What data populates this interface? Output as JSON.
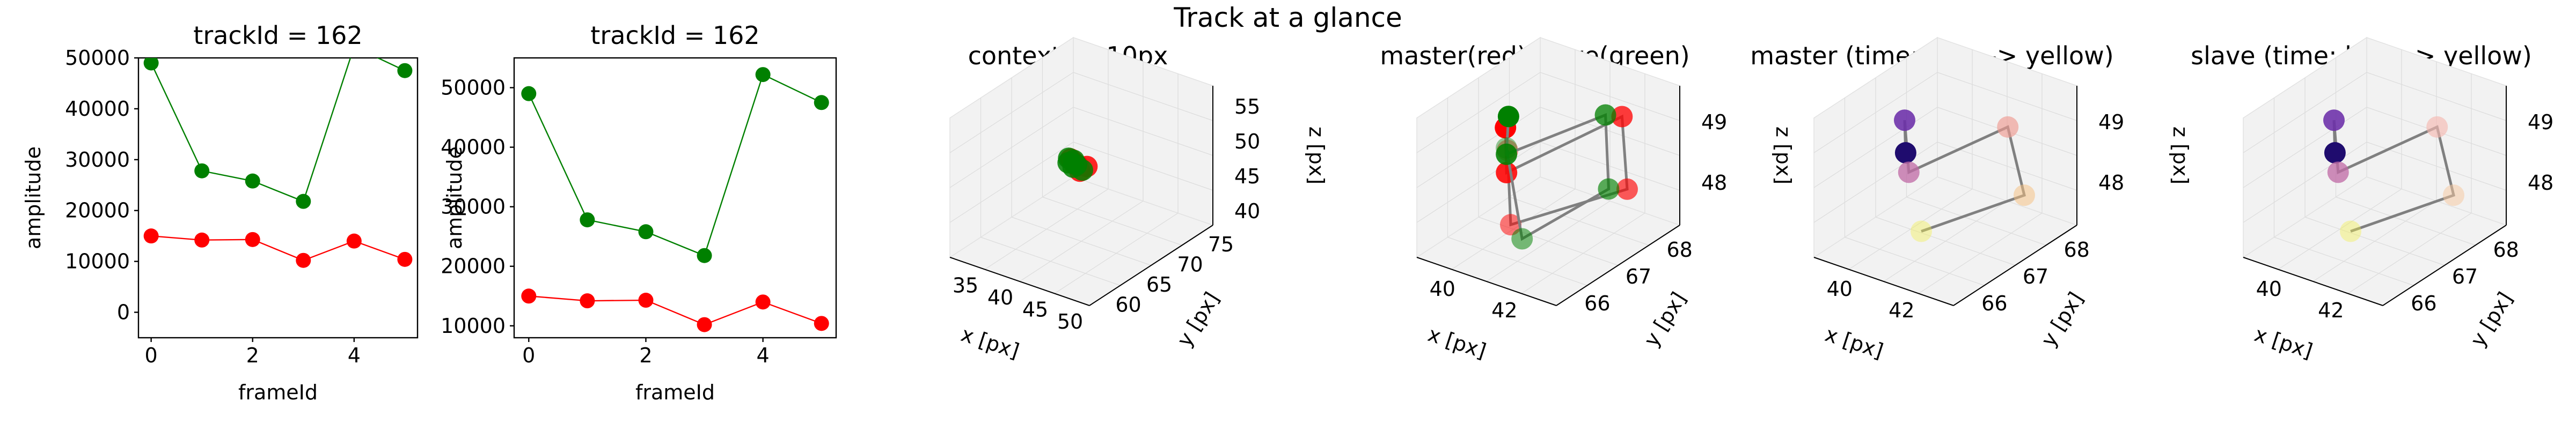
{
  "figure": {
    "suptitle": "Track at a glance"
  },
  "colors": {
    "master": "#ff0000",
    "slave": "#008000",
    "connector": "#808080"
  },
  "chart_data": [
    {
      "type": "line",
      "title": "trackId = 162",
      "xlabel": "frameId",
      "ylabel": "amplitude",
      "x": [
        0,
        1,
        2,
        3,
        4,
        5
      ],
      "xlim": [
        -0.25,
        5.25
      ],
      "ylim": [
        -5000,
        50000
      ],
      "xticks": [
        "0",
        "2",
        "4"
      ],
      "yticks": [
        "0",
        "10000",
        "20000",
        "30000",
        "40000",
        "50000"
      ],
      "series": [
        {
          "color": "#008000",
          "values": [
            49000,
            27800,
            25800,
            21800,
            52200,
            47500
          ]
        },
        {
          "color": "#ff0000",
          "values": [
            15000,
            14200,
            14300,
            10200,
            14000,
            10400
          ]
        }
      ]
    },
    {
      "type": "line",
      "title": "trackId = 162",
      "xlabel": "frameId",
      "ylabel": "amplitude",
      "x": [
        0,
        1,
        2,
        3,
        4,
        5
      ],
      "xlim": [
        -0.25,
        5.25
      ],
      "ylim": [
        8000,
        55000
      ],
      "xticks": [
        "0",
        "2",
        "4"
      ],
      "yticks": [
        "10000",
        "20000",
        "30000",
        "40000",
        "50000"
      ],
      "series": [
        {
          "color": "#008000",
          "values": [
            49000,
            27800,
            25800,
            21800,
            52200,
            47500
          ]
        },
        {
          "color": "#ff0000",
          "values": [
            15000,
            14200,
            14300,
            10200,
            14000,
            10400
          ]
        }
      ]
    },
    {
      "type": "scatter",
      "title": "context +- 10px",
      "xlabel": "x [px]",
      "ylabel": "y [px]",
      "zlabel": "z [px]",
      "xticks": [
        "35",
        "40",
        "45",
        "50"
      ],
      "yticks": [
        "60",
        "65",
        "70",
        "75"
      ],
      "zticks": [
        "40",
        "45",
        "50",
        "55"
      ],
      "xlim": [
        32,
        52
      ],
      "ylim": [
        57,
        77
      ],
      "zlim": [
        38,
        58
      ],
      "series": [
        {
          "color": "#ff0000",
          "x": [
            40.5,
            40.8,
            41.2,
            41.6,
            42.0,
            40.2
          ],
          "y": [
            67.5,
            67.8,
            66.8,
            67.2,
            67.9,
            67.3
          ],
          "z": [
            48.5,
            48.0,
            48.9,
            47.8,
            48.2,
            49.0
          ]
        },
        {
          "color": "#008000",
          "x": [
            40.0,
            40.4,
            40.9,
            41.8,
            40.1,
            40.6
          ],
          "y": [
            67.2,
            67.6,
            66.9,
            67.4,
            67.0,
            67.8
          ],
          "z": [
            49.1,
            48.7,
            48.3,
            47.9,
            48.6,
            48.0
          ]
        }
      ]
    },
    {
      "type": "scatter",
      "title": "master(red) slave(green)",
      "xlabel": "x [px]",
      "ylabel": "y [px]",
      "zlabel": "z [px]",
      "xticks": [
        "40",
        "42"
      ],
      "yticks": [
        "66",
        "67",
        "68"
      ],
      "zticks": [
        "48",
        "49"
      ],
      "xlim": [
        39,
        43.5
      ],
      "ylim": [
        65.5,
        68.5
      ],
      "zlim": [
        47.3,
        49.6
      ],
      "series": [
        {
          "color": "#ff0000",
          "x": [
            40.4,
            40.7,
            42.3,
            42.6,
            41.1,
            40.2
          ],
          "y": [
            66.6,
            66.4,
            68.0,
            67.9,
            66.2,
            66.8
          ],
          "z": [
            49.2,
            48.6,
            49.1,
            48.0,
            47.9,
            48.7
          ]
        },
        {
          "color": "#008000",
          "x": [
            40.1,
            40.3,
            41.9,
            42.4,
            41.6,
            39.9
          ],
          "y": [
            66.9,
            66.7,
            67.9,
            67.6,
            66.1,
            67.0
          ],
          "z": [
            49.2,
            48.7,
            49.1,
            48.1,
            47.8,
            48.6
          ]
        }
      ]
    },
    {
      "type": "scatter",
      "title": "master (time: blue -> yellow)",
      "xlabel": "x [px]",
      "ylabel": "y [px]",
      "zlabel": "z [px]",
      "xticks": [
        "40",
        "42"
      ],
      "yticks": [
        "66",
        "67",
        "68"
      ],
      "zticks": [
        "48",
        "49"
      ],
      "xlim": [
        39,
        43.5
      ],
      "ylim": [
        65.5,
        68.5
      ],
      "zlim": [
        47.3,
        49.6
      ],
      "series": [
        {
          "colors": [
            "#1f0c6e",
            "#6b2ea8",
            "#c06aa6",
            "#f09a90",
            "#f5c080",
            "#f2f04a"
          ],
          "x": [
            40.1,
            40.2,
            40.6,
            42.2,
            42.6,
            41.4
          ],
          "y": [
            66.9,
            66.8,
            66.6,
            67.8,
            67.9,
            66.3
          ],
          "z": [
            48.6,
            49.2,
            48.5,
            49.0,
            47.9,
            47.8
          ]
        }
      ]
    },
    {
      "type": "scatter",
      "title": "slave (time: blue -> yellow)",
      "xlabel": "x [px]",
      "ylabel": "y [px]",
      "zlabel": "z [px]",
      "xticks": [
        "40",
        "42"
      ],
      "yticks": [
        "66",
        "67",
        "68"
      ],
      "zticks": [
        "48",
        "49"
      ],
      "xlim": [
        39,
        43.5
      ],
      "ylim": [
        65.5,
        68.5
      ],
      "zlim": [
        47.3,
        49.6
      ],
      "series": [
        {
          "colors": [
            "#1f0c6e",
            "#6b2ea8",
            "#c06aa6",
            "#f5b8b0",
            "#f5c8a0",
            "#f2f04a"
          ],
          "x": [
            40.1,
            40.2,
            40.6,
            42.2,
            42.6,
            41.4
          ],
          "y": [
            66.9,
            66.8,
            66.6,
            67.8,
            67.9,
            66.3
          ],
          "z": [
            48.6,
            49.2,
            48.5,
            49.0,
            47.9,
            47.8
          ]
        }
      ]
    }
  ]
}
